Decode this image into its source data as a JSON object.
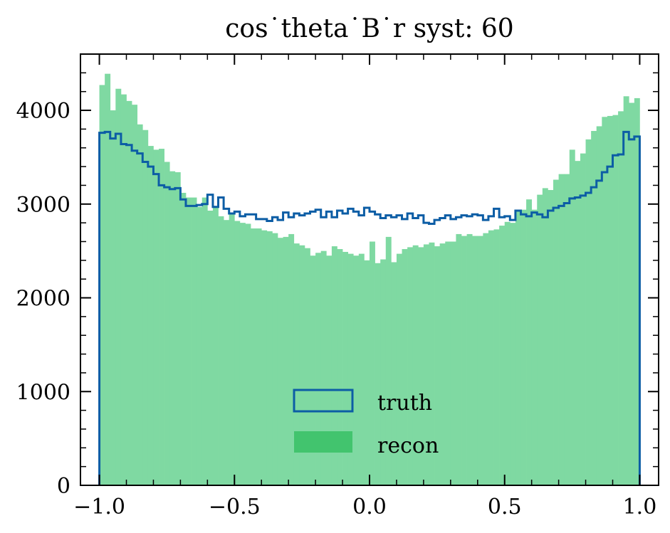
{
  "chart_data": {
    "type": "histogram",
    "title": "cos˙theta˙B˙r syst: 60",
    "xlabel": "",
    "ylabel": "",
    "xlim": [
      -1.07,
      1.07
    ],
    "ylim": [
      0,
      4600
    ],
    "x_ticks": [
      -1.0,
      -0.5,
      0.0,
      0.5,
      1.0
    ],
    "x_tick_labels": [
      "−1.0",
      "−0.5",
      "0.0",
      "0.5",
      "1.0"
    ],
    "y_ticks": [
      0,
      1000,
      2000,
      3000,
      4000
    ],
    "y_tick_labels": [
      "0",
      "1000",
      "2000",
      "3000",
      "4000"
    ],
    "bin_range": [
      -1.0,
      1.0
    ],
    "bins": 100,
    "legend": {
      "position": "lower-center"
    },
    "grid": false,
    "series": [
      {
        "name": "truth",
        "style": "step",
        "color": "#0C5DA5",
        "values": [
          3760,
          3770,
          3700,
          3750,
          3640,
          3630,
          3570,
          3540,
          3450,
          3400,
          3320,
          3200,
          3180,
          3160,
          3170,
          3050,
          2980,
          2980,
          2990,
          3000,
          3100,
          2970,
          3070,
          2950,
          2900,
          2920,
          2870,
          2890,
          2890,
          2840,
          2840,
          2820,
          2860,
          2830,
          2910,
          2860,
          2900,
          2880,
          2900,
          2920,
          2940,
          2860,
          2920,
          2860,
          2930,
          2900,
          2950,
          2920,
          2880,
          2960,
          2920,
          2890,
          2850,
          2880,
          2860,
          2880,
          2840,
          2900,
          2850,
          2880,
          2800,
          2790,
          2830,
          2850,
          2880,
          2840,
          2860,
          2880,
          2870,
          2890,
          2880,
          2830,
          2870,
          2950,
          2860,
          2870,
          2830,
          2930,
          2890,
          2870,
          2910,
          2890,
          2860,
          2930,
          2960,
          2980,
          3010,
          3060,
          3070,
          3090,
          3120,
          3180,
          3250,
          3340,
          3400,
          3520,
          3530,
          3770,
          3690,
          3720
        ]
      },
      {
        "name": "recon",
        "style": "filled",
        "color": "#7FD9A2",
        "legend_color": "#42C46E",
        "values": [
          4270,
          4390,
          4000,
          4230,
          4170,
          4100,
          4060,
          3850,
          3790,
          3620,
          3580,
          3590,
          3450,
          3350,
          3340,
          3120,
          3070,
          3070,
          2970,
          3070,
          2930,
          2980,
          2870,
          2830,
          2900,
          2820,
          2800,
          2790,
          2740,
          2740,
          2720,
          2710,
          2690,
          2640,
          2650,
          2680,
          2580,
          2560,
          2530,
          2450,
          2480,
          2500,
          2450,
          2550,
          2520,
          2490,
          2470,
          2450,
          2470,
          2400,
          2600,
          2370,
          2410,
          2650,
          2380,
          2470,
          2520,
          2540,
          2560,
          2540,
          2570,
          2590,
          2550,
          2580,
          2600,
          2600,
          2680,
          2660,
          2680,
          2660,
          2660,
          2690,
          2720,
          2730,
          2770,
          2810,
          2800,
          2940,
          2940,
          3050,
          2940,
          3100,
          3170,
          3150,
          3260,
          3320,
          3320,
          3580,
          3460,
          3540,
          3690,
          3780,
          3830,
          3930,
          3940,
          3950,
          3990,
          4150,
          4080,
          4130
        ]
      }
    ]
  }
}
